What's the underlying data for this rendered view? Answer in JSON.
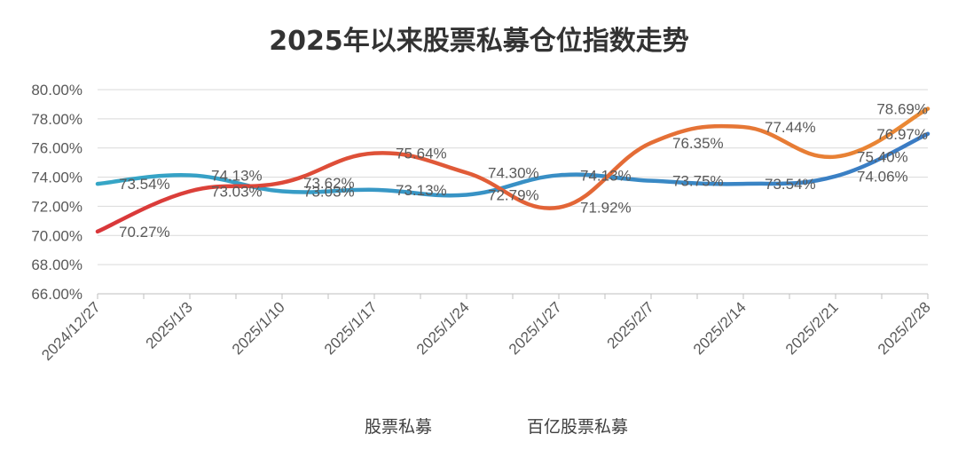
{
  "chart_data": {
    "type": "line",
    "title": "2025年以来股票私募仓位指数走势",
    "xlabel": "",
    "ylabel": "",
    "categories": [
      "2024/12/27",
      "2025/1/3",
      "2025/1/10",
      "2025/1/17",
      "2025/1/24",
      "2025/1/27",
      "2025/2/7",
      "2025/2/14",
      "2025/2/21",
      "2025/2/28"
    ],
    "ylim": [
      66,
      80
    ],
    "yticks": [
      "66.00%",
      "68.00%",
      "70.00%",
      "72.00%",
      "74.00%",
      "76.00%",
      "78.00%",
      "80.00%"
    ],
    "grid": true,
    "legend_position": "bottom",
    "smooth": true,
    "series": [
      {
        "name": "股票私募",
        "values": [
          73.54,
          74.13,
          73.03,
          73.13,
          72.79,
          74.13,
          73.75,
          73.54,
          74.06,
          76.97
        ],
        "labels": [
          "73.54%",
          "74.13%",
          "73.03%",
          "73.13%",
          "72.79%",
          "74.13%",
          "73.75%",
          "73.54%",
          "74.06%",
          "76.97%"
        ],
        "gradient": [
          "#36a6c6",
          "#3b7bc4"
        ]
      },
      {
        "name": "百亿股票私募",
        "values": [
          70.27,
          73.03,
          73.62,
          75.64,
          74.3,
          71.92,
          76.35,
          77.44,
          75.4,
          78.69
        ],
        "labels": [
          "70.27%",
          "73.03%",
          "73.62%",
          "75.64%",
          "74.30%",
          "71.92%",
          "76.35%",
          "77.44%",
          "75.40%",
          "78.69%"
        ],
        "gradient": [
          "#d9363a",
          "#ea8a34"
        ]
      }
    ]
  }
}
